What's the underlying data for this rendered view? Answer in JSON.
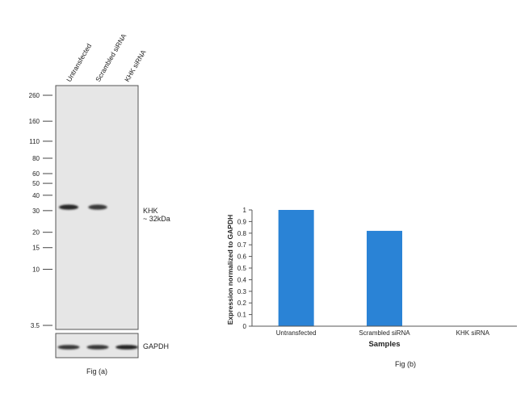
{
  "fig_a": {
    "caption": "Fig (a)",
    "lanes": [
      "Untransfected",
      "Scrambled siRNA",
      "KHK siRNA"
    ],
    "markers": [
      "260",
      "160",
      "110",
      "80",
      "60",
      "50",
      "40",
      "30",
      "20",
      "15",
      "10",
      "3.5"
    ],
    "marker_kda": [
      260,
      160,
      110,
      80,
      60,
      50,
      40,
      30,
      20,
      15,
      10,
      3.5
    ],
    "band_label": "KHK",
    "band_size": "~ 32kDa",
    "band_kda": 32,
    "band_intensity": [
      1.0,
      0.82,
      0.0
    ],
    "loading_label": "GAPDH",
    "loading_intensity": [
      0.75,
      0.75,
      0.9
    ],
    "colors": {
      "membrane": "#e6e6e6",
      "band": "#1a1a1a"
    }
  },
  "fig_b": {
    "caption": "Fig (b)"
  },
  "chart_data": {
    "type": "bar",
    "categories": [
      "Untransfected",
      "Scrambled siRNA",
      "KHK siRNA"
    ],
    "values": [
      1.0,
      0.82,
      0.0
    ],
    "xlabel": "Samples",
    "ylabel": "Expression  normalized to GAPDH",
    "ylim": [
      0,
      1
    ],
    "yticks": [
      "0",
      "0.1",
      "0.2",
      "0.3",
      "0.4",
      "0.5",
      "0.6",
      "0.7",
      "0.8",
      "0.9",
      "1"
    ],
    "grid": false,
    "legend": "none",
    "bar_color": "#2a83d6"
  }
}
